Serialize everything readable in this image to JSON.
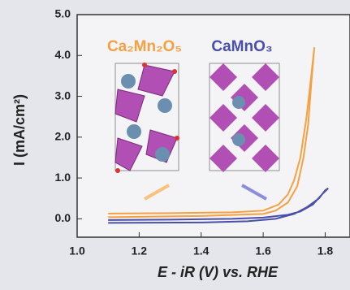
{
  "chart_data": {
    "type": "line",
    "xlabel": "E - iR (V) vs. RHE",
    "ylabel": "I (mA/cm²)",
    "xlim": [
      1.0,
      1.88
    ],
    "ylim": [
      -0.45,
      5.0
    ],
    "xticks": [
      {
        "value": 1.0,
        "label": "1.0"
      },
      1.2,
      1.4,
      1.6,
      1.8
    ],
    "yticks": [
      {
        "value": 0,
        "label": "0.0"
      },
      {
        "value": 1,
        "label": "1.0"
      },
      {
        "value": 2,
        "label": "2.0"
      },
      {
        "value": 3,
        "label": "3.0"
      },
      {
        "value": 4,
        "label": "4.0"
      },
      {
        "value": 5,
        "label": "5.0"
      }
    ],
    "series": [
      {
        "name": "Ca₂Mn₂O₅",
        "color": "#f5a142",
        "x": [
          1.1,
          1.3,
          1.5,
          1.6,
          1.65,
          1.68,
          1.7,
          1.72,
          1.74,
          1.755,
          1.765,
          1.755,
          1.745,
          1.73,
          1.71,
          1.68,
          1.64,
          1.6,
          1.4,
          1.1
        ],
        "values": [
          0.13,
          0.14,
          0.16,
          0.2,
          0.35,
          0.6,
          0.95,
          1.5,
          2.5,
          3.5,
          4.2,
          3.3,
          2.3,
          1.5,
          0.8,
          0.4,
          0.2,
          0.12,
          0.07,
          0.04
        ]
      },
      {
        "name": "CaMnO₃",
        "color": "#4a4fa8",
        "x": [
          1.1,
          1.3,
          1.5,
          1.6,
          1.68,
          1.72,
          1.76,
          1.79,
          1.81,
          1.8,
          1.78,
          1.74,
          1.7,
          1.64,
          1.55,
          1.4,
          1.1
        ],
        "values": [
          -0.03,
          -0.02,
          0.0,
          0.03,
          0.1,
          0.18,
          0.35,
          0.6,
          0.75,
          0.7,
          0.5,
          0.28,
          0.12,
          0.0,
          -0.06,
          -0.09,
          -0.1
        ]
      }
    ]
  }
}
